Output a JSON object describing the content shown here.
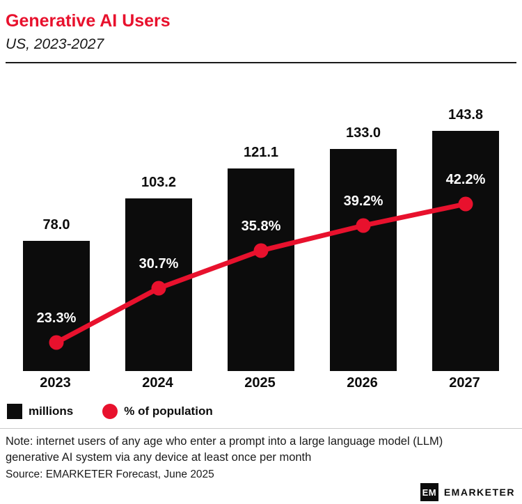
{
  "header": {
    "title": "Generative AI Users",
    "subtitle": "US, 2023-2027"
  },
  "chart_data": {
    "type": "combo-bar-line",
    "categories": [
      "2023",
      "2024",
      "2025",
      "2026",
      "2027"
    ],
    "series": [
      {
        "name": "millions",
        "type": "bar",
        "color": "#0c0c0c",
        "values": [
          78.0,
          103.2,
          121.1,
          133.0,
          143.8
        ],
        "labels": [
          "78.0",
          "103.2",
          "121.1",
          "133.0",
          "143.8"
        ]
      },
      {
        "name": "% of population",
        "type": "line",
        "color": "#e8112d",
        "values": [
          23.3,
          30.7,
          35.8,
          39.2,
          42.2
        ],
        "labels": [
          "23.3%",
          "30.7%",
          "35.8%",
          "39.2%",
          "42.2%"
        ]
      }
    ],
    "title": "Generative AI Users",
    "subtitle": "US, 2023-2027",
    "xlabel": "",
    "ylabel": "",
    "grid": false,
    "legend_position": "bottom-left"
  },
  "legend": {
    "items": [
      {
        "label": "millions",
        "swatch": "square",
        "color": "#0c0c0c"
      },
      {
        "label": "% of population",
        "swatch": "circle",
        "color": "#e8112d"
      }
    ]
  },
  "note": {
    "line1": "Note: internet users of any age who enter a prompt into a large language model (LLM)",
    "line2": "generative AI system via any device at least once per month"
  },
  "source": "Source: EMARKETER Forecast, June 2025",
  "footer": {
    "logo_monogram": "EM",
    "brand": "EMARKETER"
  },
  "colors": {
    "title": "#e8112d",
    "bar": "#0c0c0c",
    "line": "#e8112d"
  }
}
